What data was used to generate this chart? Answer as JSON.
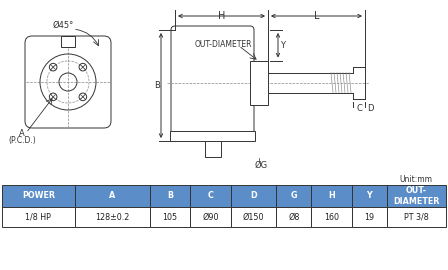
{
  "bg_color": "#ffffff",
  "line_color": "#333333",
  "gray_color": "#888888",
  "table_header_color": "#5b8dc8",
  "table_border_color": "#333333",
  "unit_text": "Unit:mm",
  "table_headers": [
    "POWER",
    "A",
    "B",
    "C",
    "D",
    "G",
    "H",
    "Y",
    "OUT-\nDIAMETER"
  ],
  "table_row": [
    "1/8 HP",
    "128±0.2",
    "105",
    "Ø90",
    "Ø150",
    "Ø8",
    "160",
    "19",
    "PT 3/8"
  ],
  "dim_H": "H",
  "dim_L": "L",
  "dim_Y": "Y",
  "dim_B": "B",
  "dim_G": "ØG",
  "dim_C": "C",
  "dim_D": "D",
  "dim_phi45": "Ø45°",
  "dim_A": "A",
  "dim_PCD": "(P.C.D.)",
  "label_out_dia": "OUT-DIAMETER"
}
